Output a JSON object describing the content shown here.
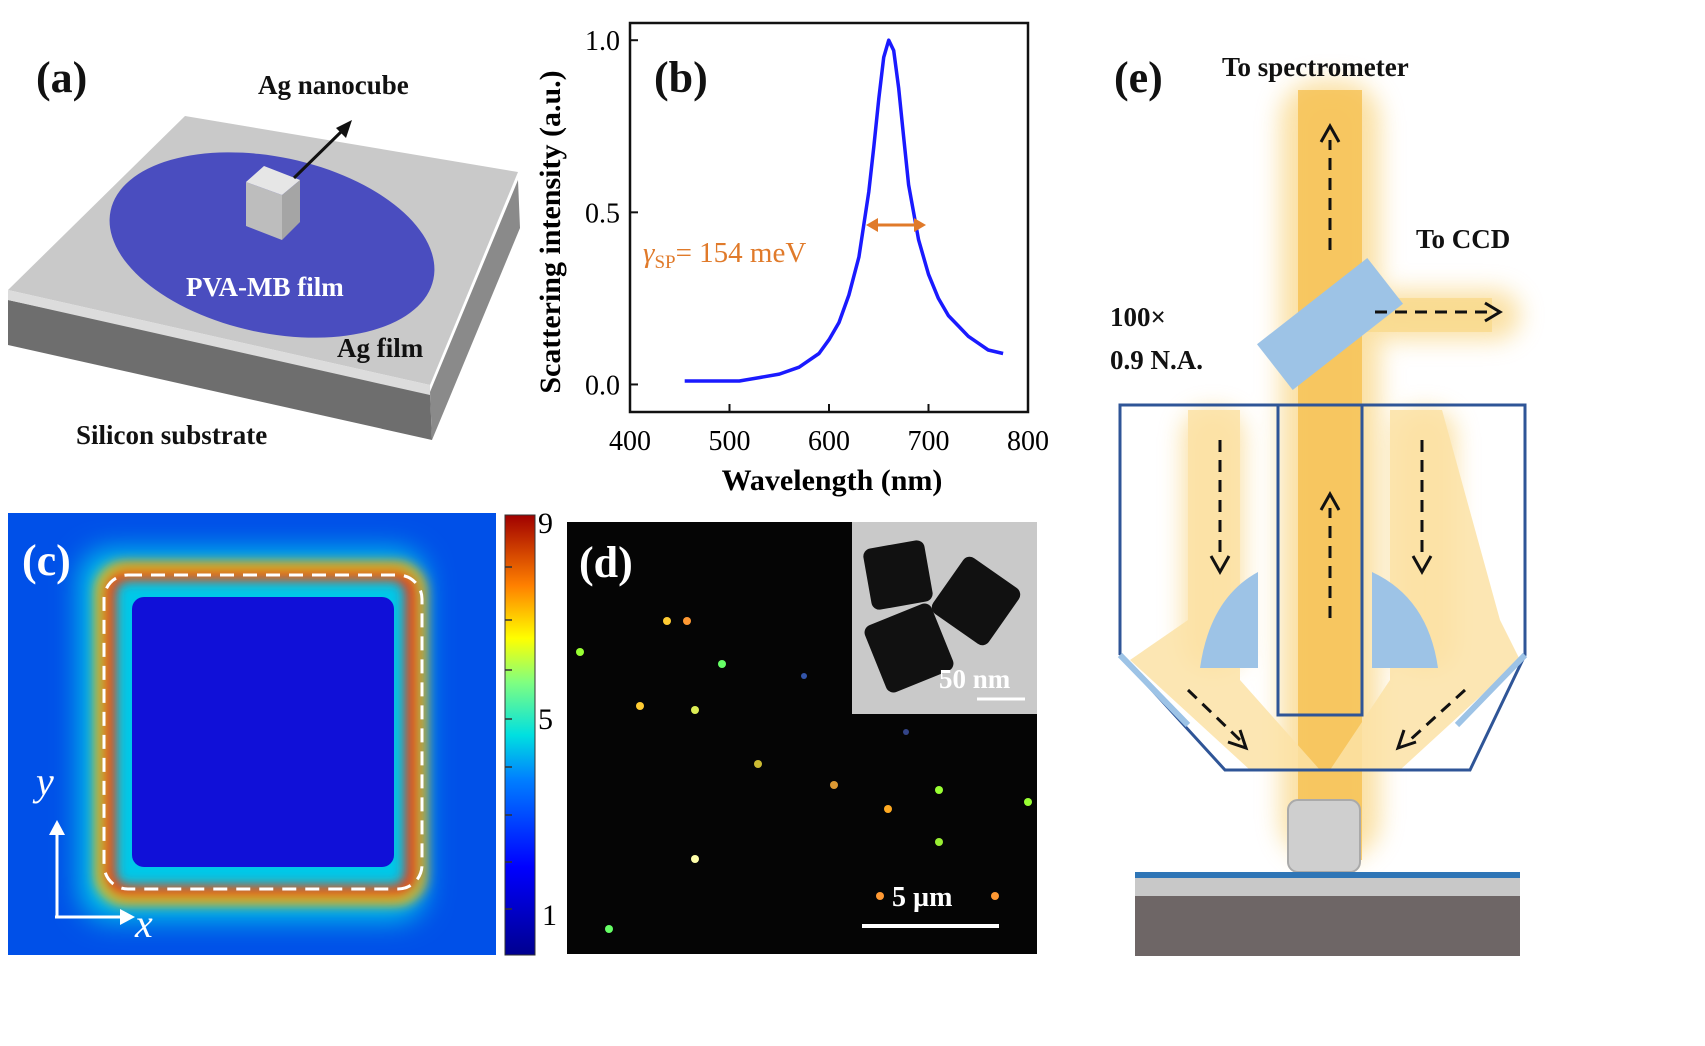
{
  "panel_a": {
    "label": "(a)",
    "nanocube": "Ag nanocube",
    "film": "PVA-MB film",
    "ag_film": "Ag film",
    "substrate": "Silicon substrate"
  },
  "panel_b": {
    "label": "(b)",
    "annotation_symbol": "γ",
    "annotation_sub": "SP",
    "annotation_value": "= 154 meV"
  },
  "panel_c": {
    "label": "(c)",
    "colorbar_ticks": [
      "9",
      "5",
      "1"
    ],
    "axis_y": "y",
    "axis_x": "x"
  },
  "panel_d": {
    "label": "(d)",
    "inset_scale": "50 nm",
    "scale": "5 µm"
  },
  "panel_e": {
    "label": "(e)",
    "to_spectrometer": "To spectrometer",
    "to_ccd": "To CCD",
    "mag": "100×",
    "na": "0.9 N.A."
  },
  "chart_data": {
    "type": "line",
    "xlabel": "Wavelength (nm)",
    "ylabel": "Scattering intensity (a.u.)",
    "xlim": [
      400,
      800
    ],
    "ylim": [
      -0.08,
      1.05
    ],
    "xticks": [
      400,
      500,
      600,
      700,
      800
    ],
    "yticks": [
      0.0,
      0.5,
      1.0
    ],
    "series": [
      {
        "color": "#1a1aff",
        "x": [
          455,
          470,
          490,
          510,
          530,
          550,
          570,
          590,
          600,
          610,
          620,
          630,
          640,
          645,
          650,
          655,
          660,
          665,
          670,
          675,
          680,
          690,
          700,
          710,
          720,
          730,
          740,
          750,
          760,
          775
        ],
        "y": [
          0.01,
          0.01,
          0.01,
          0.01,
          0.02,
          0.03,
          0.05,
          0.09,
          0.13,
          0.18,
          0.26,
          0.37,
          0.56,
          0.69,
          0.83,
          0.95,
          1.0,
          0.97,
          0.86,
          0.72,
          0.58,
          0.42,
          0.32,
          0.25,
          0.2,
          0.17,
          0.14,
          0.12,
          0.1,
          0.09
        ]
      }
    ]
  },
  "colors": {
    "curve": "#1a1aff",
    "annotation": "#e07a2a",
    "film_blue": "#4a4dbf",
    "beam": "#f7c85a",
    "frame": "#2f5597",
    "optic": "#9dc3e6"
  }
}
